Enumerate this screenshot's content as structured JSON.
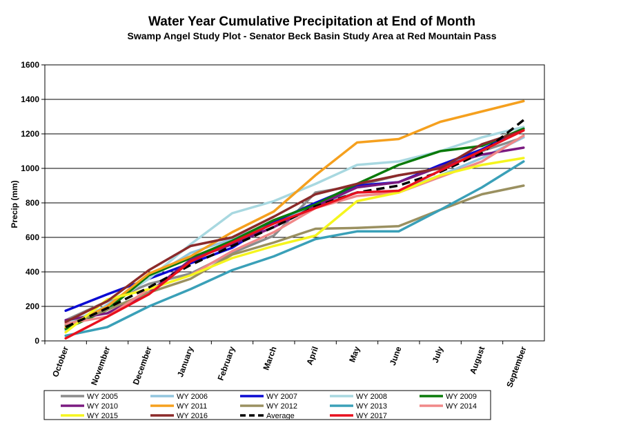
{
  "chart_data": {
    "type": "line",
    "title": "Water Year Cumulative Precipitation  at End of Month",
    "subtitle": "Swamp Angel Study Plot - Senator Beck Basin Study Area at Red Mountain Pass",
    "xlabel": "",
    "ylabel": "Precip (mm)",
    "ylim": [
      0,
      1600
    ],
    "yticks": [
      0,
      200,
      400,
      600,
      800,
      1000,
      1200,
      1400,
      1600
    ],
    "grid": true,
    "legend_position": "bottom",
    "categories": [
      "October",
      "November",
      "December",
      "January",
      "February",
      "March",
      "April",
      "May",
      "June",
      "July",
      "August",
      "September"
    ],
    "series": [
      {
        "name": "WY 2005",
        "color": "#8c8c8c",
        "dash": "solid",
        "values": [
          120,
          230,
          330,
          390,
          510,
          610,
          860,
          900,
          960,
          1000,
          1100,
          1180
        ]
      },
      {
        "name": "WY 2006",
        "color": "#92c5de",
        "dash": "solid",
        "values": [
          60,
          210,
          360,
          510,
          590,
          690,
          790,
          860,
          870,
          960,
          1060,
          1180
        ]
      },
      {
        "name": "WY 2007",
        "color": "#0a0ad2",
        "dash": "solid",
        "values": [
          175,
          270,
          360,
          450,
          540,
          690,
          800,
          900,
          920,
          1020,
          1110,
          1230
        ]
      },
      {
        "name": "WY 2008",
        "color": "#a8d8e0",
        "dash": "solid",
        "values": [
          100,
          200,
          360,
          560,
          740,
          810,
          910,
          1020,
          1040,
          1100,
          1180,
          1240
        ]
      },
      {
        "name": "WY 2009",
        "color": "#0a7a0a",
        "dash": "solid",
        "values": [
          70,
          180,
          380,
          480,
          580,
          700,
          790,
          910,
          1020,
          1100,
          1130,
          1230
        ]
      },
      {
        "name": "WY 2010",
        "color": "#7a1a80",
        "dash": "solid",
        "values": [
          120,
          160,
          280,
          470,
          560,
          660,
          780,
          890,
          920,
          1010,
          1080,
          1120
        ]
      },
      {
        "name": "WY 2011",
        "color": "#f5a01e",
        "dash": "solid",
        "values": [
          80,
          200,
          390,
          490,
          630,
          750,
          960,
          1150,
          1170,
          1270,
          1330,
          1390
        ]
      },
      {
        "name": "WY 2012",
        "color": "#9a9060",
        "dash": "solid",
        "values": [
          90,
          180,
          280,
          360,
          500,
          570,
          650,
          655,
          665,
          760,
          850,
          900
        ]
      },
      {
        "name": "WY 2013",
        "color": "#3aa0b8",
        "dash": "solid",
        "values": [
          30,
          80,
          200,
          300,
          410,
          490,
          590,
          635,
          635,
          760,
          890,
          1040
        ]
      },
      {
        "name": "WY 2014",
        "color": "#f08888",
        "dash": "solid",
        "values": [
          100,
          140,
          300,
          380,
          520,
          630,
          770,
          840,
          860,
          950,
          1040,
          1190
        ]
      },
      {
        "name": "WY 2015",
        "color": "#f5f51e",
        "dash": "solid",
        "values": [
          50,
          240,
          300,
          380,
          480,
          550,
          610,
          810,
          860,
          960,
          1020,
          1060
        ]
      },
      {
        "name": "WY 2016",
        "color": "#8b2a2a",
        "dash": "solid",
        "values": [
          110,
          230,
          410,
          550,
          600,
          720,
          850,
          910,
          960,
          1000,
          1140,
          1220
        ]
      },
      {
        "name": "Average",
        "color": "#000000",
        "dash": "dashed",
        "values": [
          80,
          190,
          310,
          440,
          550,
          660,
          780,
          860,
          900,
          980,
          1090,
          1280
        ]
      },
      {
        "name": "WY 2017",
        "color": "#e8101e",
        "dash": "solid",
        "values": [
          15,
          140,
          270,
          460,
          570,
          680,
          770,
          860,
          870,
          null,
          null,
          1220
        ]
      }
    ]
  }
}
